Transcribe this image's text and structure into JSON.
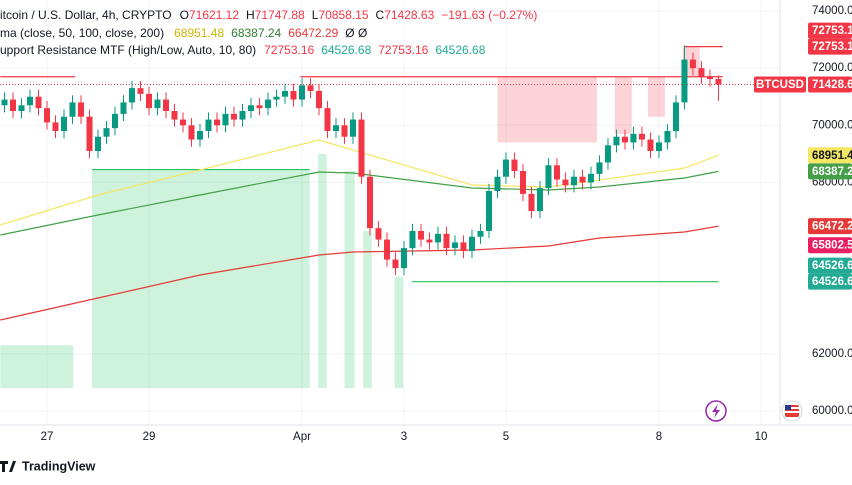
{
  "chart_data": {
    "type": "candlestick",
    "header": {
      "symbol": "itcoin / U.S. Dollar, 4h, CRYPTO",
      "ohlc_labels": [
        "O",
        "H",
        "L",
        "C"
      ],
      "change": "−191.63 (−0.27%)",
      "ma_title": "ma (close, 50, 100, close, 200)",
      "ma_suffix": "Ø Ø",
      "sr_title": "upport Resistance MTF (High/Low, Auto, 10, 80)"
    },
    "ticker": "BTCUSD",
    "brand": "TradingView",
    "x": [
      0,
      1,
      2,
      3,
      4,
      5,
      6,
      7,
      8,
      9,
      10,
      11,
      12,
      13,
      14,
      15,
      16,
      17,
      18,
      19,
      20,
      21,
      22,
      23,
      24,
      25,
      26,
      27,
      28,
      29,
      30,
      31,
      32,
      33,
      34,
      35,
      36,
      37,
      38,
      39,
      40,
      41,
      42,
      43,
      44,
      45,
      46,
      47,
      48,
      49,
      50,
      51,
      52,
      53,
      54,
      55,
      56,
      57,
      58,
      59,
      60,
      61,
      62,
      63,
      64,
      65,
      66,
      67,
      68,
      69,
      70,
      71,
      72,
      73,
      74,
      75,
      76,
      77,
      78,
      79,
      80,
      81,
      82,
      83,
      84
    ],
    "open": [
      70700,
      70900,
      70500,
      70700,
      71000,
      70600,
      70100,
      69800,
      70300,
      70800,
      70300,
      69100,
      69600,
      69900,
      70400,
      70800,
      71300,
      71100,
      70600,
      70900,
      70500,
      70200,
      70000,
      69500,
      69800,
      70200,
      70000,
      70400,
      70200,
      70500,
      70700,
      70600,
      70900,
      71000,
      71200,
      70900,
      71400,
      71200,
      70600,
      69800,
      70000,
      69600,
      70200,
      68200,
      66400,
      66000,
      65300,
      65000,
      65700,
      66300,
      66000,
      65900,
      66200,
      65700,
      65900,
      65600,
      66100,
      66300,
      67700,
      68200,
      68800,
      68400,
      67600,
      67000,
      67800,
      68600,
      68100,
      67900,
      68200,
      68000,
      68300,
      68700,
      69300,
      69600,
      69400,
      69700,
      69500,
      69100,
      69400,
      69800,
      70800,
      72300,
      72000,
      71700,
      71621.12
    ],
    "high": [
      71150,
      71150,
      70950,
      71250,
      71250,
      70850,
      70350,
      70550,
      71050,
      71050,
      70550,
      69850,
      70150,
      70650,
      71050,
      71550,
      71550,
      71350,
      71150,
      71150,
      70750,
      70450,
      70250,
      70050,
      70450,
      70450,
      70650,
      70650,
      70750,
      70950,
      70950,
      71150,
      71250,
      71450,
      71450,
      71650,
      71650,
      71450,
      70850,
      70250,
      70250,
      70450,
      70450,
      68450,
      66650,
      66250,
      65550,
      65950,
      66550,
      66550,
      66250,
      66450,
      66450,
      66150,
      66150,
      66350,
      66550,
      67950,
      68450,
      69050,
      69050,
      68650,
      67850,
      68050,
      68850,
      68850,
      68350,
      68450,
      68450,
      68550,
      68950,
      69550,
      69850,
      69850,
      69950,
      69950,
      69750,
      69650,
      70050,
      71050,
      72800,
      72550,
      72250,
      71950,
      71747.88
    ],
    "low": [
      70450,
      70250,
      70250,
      70450,
      70350,
      69850,
      69550,
      69550,
      70050,
      70050,
      68850,
      68850,
      69350,
      69650,
      70150,
      70550,
      70850,
      70350,
      70350,
      70250,
      69950,
      69750,
      69250,
      69250,
      69550,
      69750,
      69750,
      69950,
      69950,
      70250,
      70350,
      70350,
      70650,
      70750,
      70650,
      70650,
      70950,
      70350,
      69550,
      69550,
      69350,
      69350,
      67950,
      66150,
      65750,
      65050,
      64750,
      64750,
      65450,
      65750,
      65650,
      65650,
      65450,
      65450,
      65350,
      65350,
      65850,
      66050,
      67450,
      67950,
      68150,
      67350,
      66750,
      66750,
      67550,
      67850,
      67650,
      67650,
      67750,
      67750,
      68050,
      68450,
      69050,
      69150,
      69150,
      69250,
      68850,
      68850,
      69150,
      69550,
      70550,
      71750,
      71450,
      71350,
      70858.15
    ],
    "close": [
      70900,
      70500,
      70700,
      71000,
      70600,
      70100,
      69800,
      70300,
      70800,
      70300,
      69100,
      69600,
      69900,
      70400,
      70800,
      71300,
      71100,
      70600,
      70900,
      70500,
      70200,
      70000,
      69500,
      69800,
      70200,
      70000,
      70400,
      70200,
      70500,
      70700,
      70600,
      70900,
      71000,
      71200,
      70900,
      71400,
      71200,
      70600,
      69800,
      70000,
      69600,
      70200,
      68200,
      66400,
      66000,
      65300,
      65000,
      65700,
      66300,
      66000,
      65900,
      66200,
      65700,
      65900,
      65600,
      66100,
      66300,
      67700,
      68200,
      68800,
      68400,
      67600,
      67000,
      67800,
      68600,
      68100,
      67900,
      68200,
      68000,
      68300,
      68700,
      69300,
      69600,
      69400,
      69700,
      69500,
      69100,
      69400,
      69800,
      70800,
      72300,
      72000,
      71700,
      71621.12,
      71428.63
    ],
    "up_color": "#089981",
    "down_color": "#f23645",
    "series": [
      {
        "color": "#f5e663",
        "x": [
          -0.5,
          11,
          23,
          37,
          41,
          55,
          64,
          70,
          80,
          84
        ],
        "values": [
          66510,
          67560,
          68435,
          69485,
          69135,
          67910,
          67840,
          68085,
          68505,
          68951.48
        ]
      },
      {
        "color": "#43a047",
        "x": [
          -0.5,
          11,
          23,
          37,
          41,
          55,
          64,
          70,
          80,
          84
        ],
        "values": [
          66160,
          66860,
          67560,
          68365,
          68330,
          67805,
          67735,
          67840,
          68155,
          68387.24
        ]
      },
      {
        "color": "#e53935",
        "x": [
          -0.5,
          11,
          23,
          37,
          41,
          55,
          64,
          70,
          80,
          84
        ],
        "values": [
          63185,
          63955,
          64760,
          65460,
          65565,
          65635,
          65775,
          66055,
          66265,
          66472.29
        ]
      }
    ],
    "support_resistance": [
      72753.16,
      64526.68,
      72753.16,
      64526.68
    ],
    "sr_colors": [
      "#f23645",
      "#22ab94",
      "#f23645",
      "#22ab94"
    ],
    "zones": [
      {
        "color": "#22c55e",
        "x0": -0.5,
        "x1": 8.1,
        "top": 62300,
        "bottom": 60800
      },
      {
        "color": "#22c55e",
        "x0": 10.3,
        "x1": 35.9,
        "top": 68450,
        "bottom": 60800
      },
      {
        "color": "#22c55e",
        "x0": 36.9,
        "x1": 37.9,
        "top": 69000,
        "bottom": 60800
      },
      {
        "color": "#22c55e",
        "x0": 40.0,
        "x1": 41.2,
        "top": 68400,
        "bottom": 60800
      },
      {
        "color": "#22c55e",
        "x0": 42.2,
        "x1": 43.2,
        "top": 66300,
        "bottom": 60800
      },
      {
        "color": "#22c55e",
        "x0": 45.9,
        "x1": 46.9,
        "top": 64700,
        "bottom": 60800
      },
      {
        "color": "#f23645",
        "x0": 58.0,
        "x1": 69.7,
        "top": 71700,
        "bottom": 69400
      },
      {
        "color": "#f23645",
        "x0": 71.8,
        "x1": 73.8,
        "top": 71700,
        "bottom": 69700
      },
      {
        "color": "#f23645",
        "x0": 75.7,
        "x1": 77.7,
        "top": 71700,
        "bottom": 70300
      },
      {
        "color": "#f23645",
        "x0": 79.8,
        "x1": 81.8,
        "top": 72753.16,
        "bottom": 71700
      }
    ],
    "levels": [
      {
        "color": "#f23645",
        "x0": -0.5,
        "x1": 8.3,
        "value": 71700
      },
      {
        "color": "#f23645",
        "x0": 34.8,
        "x1": 84.5,
        "value": 71700
      },
      {
        "color": "#f23645",
        "x0": 80.0,
        "x1": 84.5,
        "value": 72753.16
      },
      {
        "color": "#22c55e",
        "x0": 10.3,
        "x1": 35.9,
        "value": 68450
      },
      {
        "color": "#22c55e",
        "x0": 47.9,
        "x1": 84.0,
        "value": 64526.68
      }
    ],
    "extra_labels": [
      {
        "value": 65802.5,
        "color": "#e91e63"
      }
    ],
    "xlim": [
      -0.53,
      91.24
    ],
    "ylim": [
      59510,
      74385
    ],
    "xticks": [
      {
        "value": 5,
        "label": "27"
      },
      {
        "value": 17,
        "label": "29"
      },
      {
        "value": 35,
        "label": "Apr"
      },
      {
        "value": 47,
        "label": "3"
      },
      {
        "value": 59,
        "label": "5"
      },
      {
        "value": 77,
        "label": "8"
      },
      {
        "value": 89,
        "label": "10"
      }
    ],
    "yticks": [
      {
        "value": 74000,
        "label": "74000.00"
      },
      {
        "value": 72000,
        "label": "72000.00"
      },
      {
        "value": 70000,
        "label": "70000.00"
      },
      {
        "value": 68000,
        "label": "68000.00"
      },
      {
        "value": 62000,
        "label": "62000.00"
      },
      {
        "value": 60000,
        "label": "60000.00"
      }
    ],
    "grid": true
  }
}
